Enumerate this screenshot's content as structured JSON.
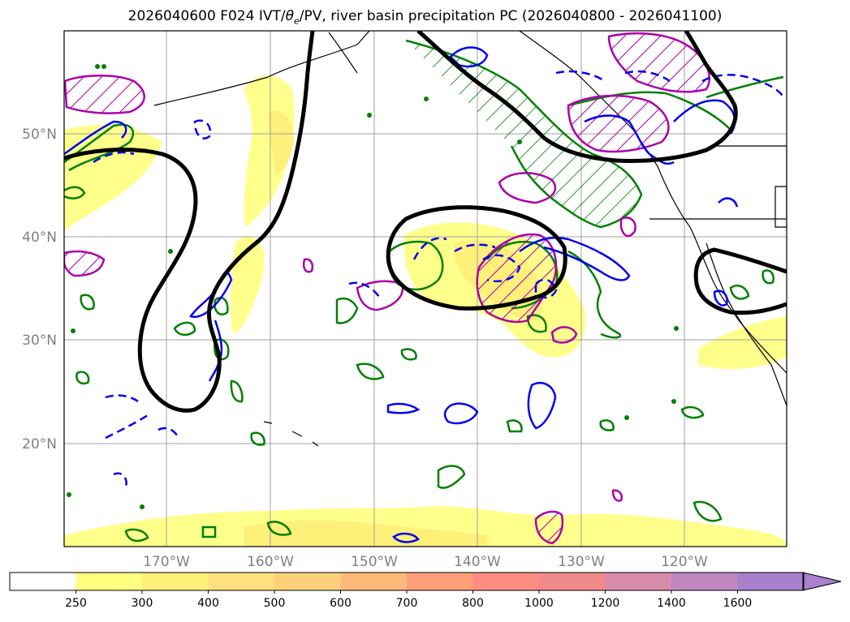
{
  "title": {
    "prefix": "2026040600 F024 IVT/",
    "theta": "θ",
    "subscript": "e",
    "suffix": "/PV, river basin precipitation PC (2026040800 - 2026041100)"
  },
  "map": {
    "lat_labels": [
      "50°N",
      "40°N",
      "30°N",
      "20°N"
    ],
    "lon_labels": [
      "170°W",
      "160°W",
      "150°W",
      "140°W",
      "130°W",
      "120°W"
    ]
  },
  "colorbar": {
    "ticks": [
      "250",
      "300",
      "400",
      "500",
      "600",
      "700",
      "800",
      "1000",
      "1200",
      "1400",
      "1600"
    ],
    "colors": [
      "#ffffff",
      "#ffff80",
      "#fff07a",
      "#ffe07a",
      "#ffd07a",
      "#ffb87a",
      "#ffa07a",
      "#ff8c80",
      "#f08a8a",
      "#d88aaa",
      "#c088c0",
      "#a880cc"
    ],
    "extend": "max"
  }
}
